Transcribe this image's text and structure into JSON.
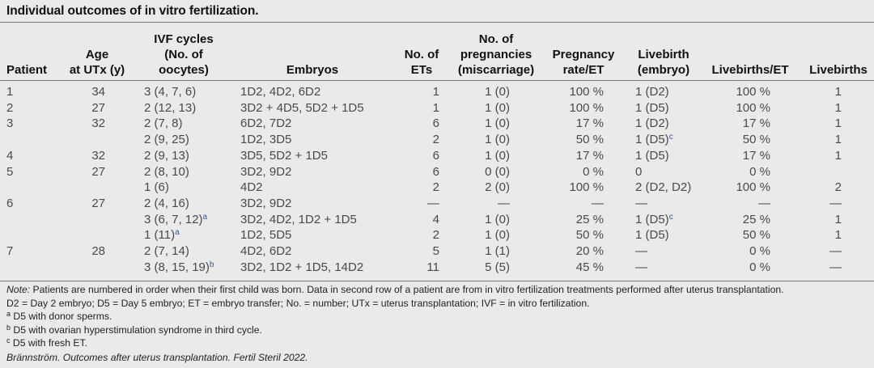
{
  "title": "Individual outcomes of in vitro fertilization.",
  "headers": {
    "patient": [
      "Patient"
    ],
    "age": [
      "Age",
      "at UTx (y)"
    ],
    "ivf": [
      "IVF cycles",
      "(No. of",
      "oocytes)"
    ],
    "embryos": [
      "Embryos"
    ],
    "ets": [
      "No. of",
      "ETs"
    ],
    "pregnancies": [
      "No. of",
      "pregnancies",
      "(miscarriage)"
    ],
    "pregrate": [
      "Pregnancy",
      "rate/ET"
    ],
    "livebirth": [
      "Livebirth",
      "(embryo)"
    ],
    "livebirths_et": [
      "Livebirths/ET"
    ],
    "livebirths": [
      "Livebirths"
    ]
  },
  "rows": [
    {
      "patient": "1",
      "age": "34",
      "ivf": "3 (4, 7, 6)",
      "ivf_sup": "",
      "embryos": "1D2, 4D2, 6D2",
      "ets": "1",
      "preg": "1 (0)",
      "rate": "100 %",
      "lb": "1 (D2)",
      "lb_sup": "",
      "lbet": "100 %",
      "lbs": "1"
    },
    {
      "patient": "2",
      "age": "27",
      "ivf": "2 (12, 13)",
      "ivf_sup": "",
      "embryos": "3D2 + 4D5, 5D2 + 1D5",
      "ets": "1",
      "preg": "1 (0)",
      "rate": "100 %",
      "lb": "1 (D5)",
      "lb_sup": "",
      "lbet": "100 %",
      "lbs": "1"
    },
    {
      "patient": "3",
      "age": "32",
      "ivf": "2 (7, 8)",
      "ivf_sup": "",
      "embryos": "6D2, 7D2",
      "ets": "6",
      "preg": "1 (0)",
      "rate": "17 %",
      "lb": "1 (D2)",
      "lb_sup": "",
      "lbet": "17 %",
      "lbs": "1"
    },
    {
      "patient": "",
      "age": "",
      "ivf": "2 (9, 25)",
      "ivf_sup": "",
      "embryos": "1D2, 3D5",
      "ets": "2",
      "preg": "1 (0)",
      "rate": "50 %",
      "lb": "1 (D5)",
      "lb_sup": "c",
      "lbet": "50 %",
      "lbs": "1"
    },
    {
      "patient": "4",
      "age": "32",
      "ivf": "2 (9, 13)",
      "ivf_sup": "",
      "embryos": "3D5, 5D2 + 1D5",
      "ets": "6",
      "preg": "1 (0)",
      "rate": "17 %",
      "lb": "1 (D5)",
      "lb_sup": "",
      "lbet": "17 %",
      "lbs": "1"
    },
    {
      "patient": "5",
      "age": "27",
      "ivf": "2 (8, 10)",
      "ivf_sup": "",
      "embryos": "3D2, 9D2",
      "ets": "6",
      "preg": "0 (0)",
      "rate": "0 %",
      "lb": "0",
      "lb_sup": "",
      "lbet": "0 %",
      "lbs": ""
    },
    {
      "patient": "",
      "age": "",
      "ivf": "1 (6)",
      "ivf_sup": "",
      "embryos": "4D2",
      "ets": "2",
      "preg": "2 (0)",
      "rate": "100 %",
      "lb": "2 (D2, D2)",
      "lb_sup": "",
      "lbet": "100 %",
      "lbs": "2"
    },
    {
      "patient": "6",
      "age": "27",
      "ivf": "2 (4, 16)",
      "ivf_sup": "",
      "embryos": "3D2, 9D2",
      "ets": "—",
      "preg": "—",
      "rate": "—",
      "lb": "—",
      "lb_sup": "",
      "lbet": "—",
      "lbs": "—"
    },
    {
      "patient": "",
      "age": "",
      "ivf": "3 (6, 7, 12)",
      "ivf_sup": "a",
      "embryos": "3D2, 4D2, 1D2 + 1D5",
      "ets": "4",
      "preg": "1 (0)",
      "rate": "25 %",
      "lb": "1 (D5)",
      "lb_sup": "c",
      "lbet": "25 %",
      "lbs": "1"
    },
    {
      "patient": "",
      "age": "",
      "ivf": "1 (11)",
      "ivf_sup": "a",
      "embryos": "1D2, 5D5",
      "ets": "2",
      "preg": "1 (0)",
      "rate": "50 %",
      "lb": "1 (D5)",
      "lb_sup": "",
      "lbet": "50 %",
      "lbs": "1"
    },
    {
      "patient": "7",
      "age": "28",
      "ivf": "2 (7, 14)",
      "ivf_sup": "",
      "embryos": "4D2, 6D2",
      "ets": "5",
      "preg": "1 (1)",
      "rate": "20 %",
      "lb": "—",
      "lb_sup": "",
      "lbet": "0 %",
      "lbs": "—"
    },
    {
      "patient": "",
      "age": "",
      "ivf": "3 (8, 15, 19)",
      "ivf_sup": "b",
      "embryos": "3D2, 1D2 + 1D5, 14D2",
      "ets": "11",
      "preg": "5 (5)",
      "rate": "45 %",
      "lb": "—",
      "lb_sup": "",
      "lbet": "0 %",
      "lbs": "—"
    }
  ],
  "notes": {
    "note_label": "Note:",
    "note_text": " Patients are numbered in order when their first child was born. Data in second row of a patient are from in vitro fertilization treatments performed after uterus transplantation.",
    "abbrev": "D2 = Day 2 embryo; D5 = Day 5 embryo; ET = embryo transfer; No. = number; UTx = uterus transplantation; IVF = in vitro fertilization.",
    "fn_a_mark": "a",
    "fn_a": " D5 with donor sperms.",
    "fn_b_mark": "b",
    "fn_b": " D5 with ovarian hyperstimulation syndrome in third cycle.",
    "fn_c_mark": "c",
    "fn_c": " D5 with fresh ET."
  },
  "citation": "Brännström. Outcomes after uterus transplantation. Fertil Steril 2022."
}
